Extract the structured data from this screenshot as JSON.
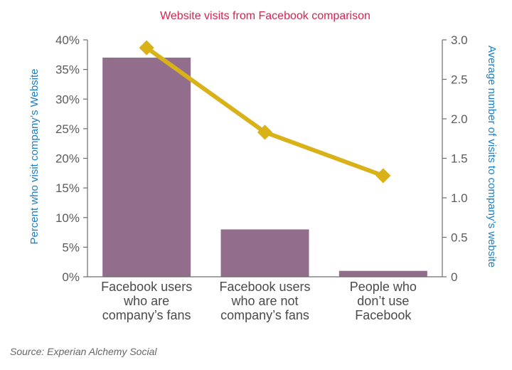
{
  "chart_data": {
    "type": "bar",
    "title": "Website visits from Facebook comparison",
    "categories": [
      [
        "Facebook users",
        "who are",
        "company’s fans"
      ],
      [
        "Facebook users",
        "who are not",
        "company’s fans"
      ],
      [
        "People who",
        "don’t use",
        "Facebook"
      ]
    ],
    "series": [
      {
        "type": "bar",
        "axis": "left",
        "values": [
          37,
          8,
          1
        ],
        "color": "#936e8c"
      },
      {
        "type": "line",
        "axis": "right",
        "values": [
          2.9,
          1.83,
          1.28
        ],
        "color": "#d9b21a"
      }
    ],
    "ylabel": "Percent who visit company’s Website",
    "y2label": "Average number of visits to company’s website",
    "ylim": [
      0,
      40
    ],
    "y2lim": [
      0,
      3.0
    ],
    "yticks": [
      "0%",
      "5%",
      "10%",
      "15%",
      "20%",
      "25%",
      "30%",
      "35%",
      "40%"
    ],
    "y2ticks": [
      "0",
      "0.5",
      "1.0",
      "1.5",
      "2.0",
      "2.5",
      "3.0"
    ],
    "grid": false,
    "source": "Source: Experian Alchemy Social"
  }
}
